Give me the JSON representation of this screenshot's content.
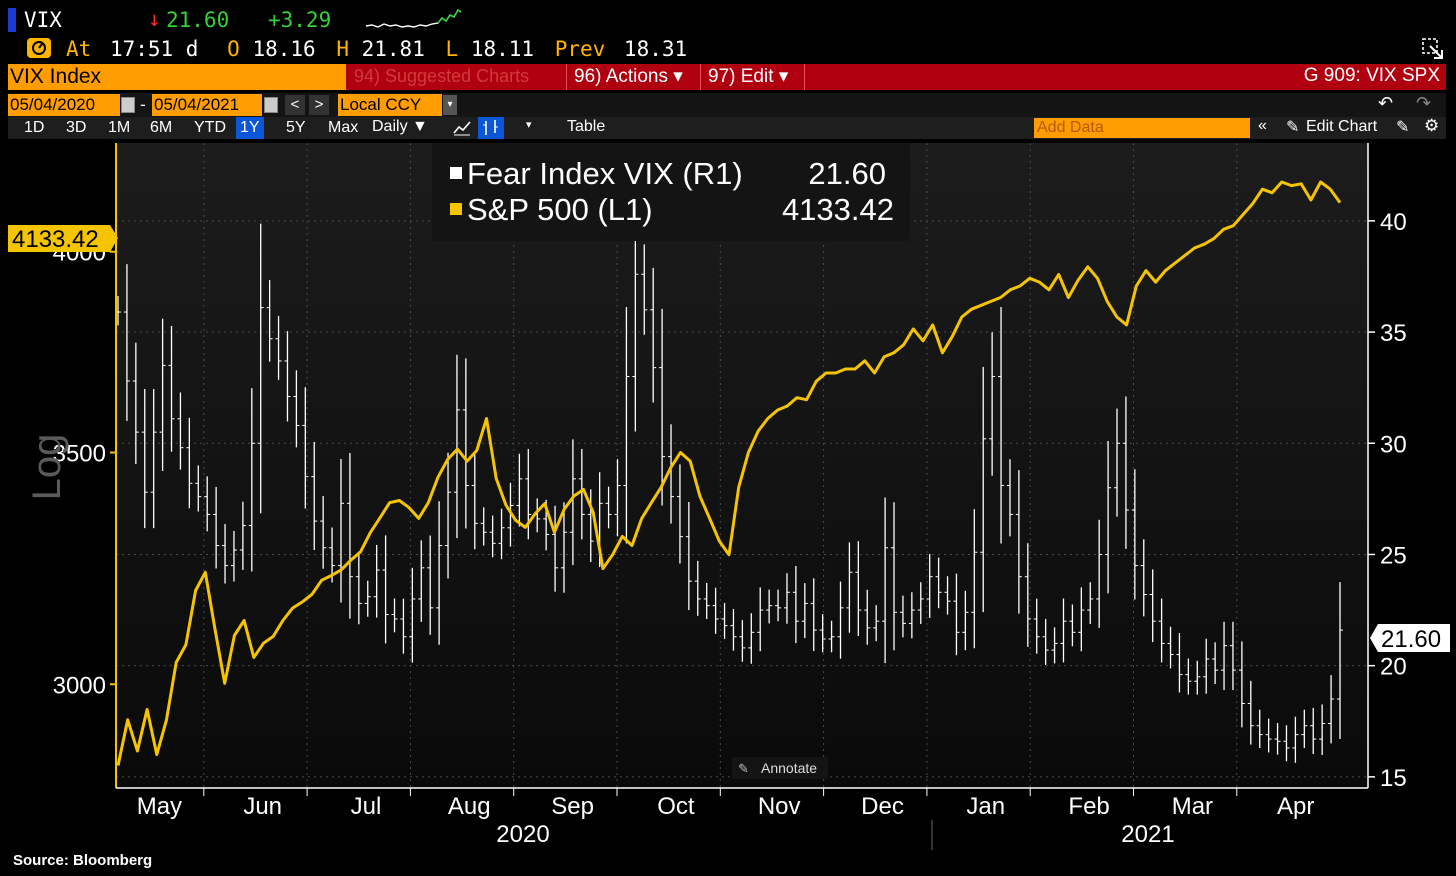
{
  "header": {
    "ticker": "VIX",
    "last": "21.60",
    "arrow": "↓",
    "change": "+3.29",
    "at_label": "At",
    "time": "17:51 d",
    "open_label": "O",
    "open": "18.16",
    "high_label": "H",
    "high": "21.81",
    "low_label": "L",
    "low": "18.11",
    "prev_label": "Prev",
    "prev": "18.31"
  },
  "menubar": {
    "security": "VIX Index",
    "suggested": "94) Suggested Charts",
    "actions": "96) Actions ▾",
    "edit": "97) Edit ▾",
    "chart_id": "G 909: VIX SPX"
  },
  "daterow": {
    "start": "05/04/2020",
    "dash": "-",
    "end": "05/04/2021",
    "currency": "Local CCY"
  },
  "toolbar": {
    "periods": [
      "1D",
      "3D",
      "1M",
      "6M",
      "YTD",
      "1Y",
      "5Y",
      "Max"
    ],
    "selected_period": "1Y",
    "frequency": "Daily ▼",
    "table": "Table",
    "add_data_placeholder": "Add Data",
    "edit_chart": "Edit Chart"
  },
  "annotate": "Annotate",
  "source": "Source: Bloomberg",
  "colors": {
    "spx": "#f5c400",
    "vix": "#ffffff",
    "accent_orange": "#ff9c00",
    "menu_red": "#b00010"
  },
  "chart_data": {
    "type": "line",
    "legend": [
      {
        "label": "Fear Index VIX (R1)",
        "value": "21.60",
        "color": "#ffffff"
      },
      {
        "label": "S&P 500 (L1)",
        "value": "4133.42",
        "color": "#f5c400"
      }
    ],
    "left_axis": {
      "title": "Log",
      "scale": "log",
      "ticks": [
        3000,
        3500,
        4000
      ],
      "range": [
        2800,
        4300
      ],
      "last_label": "4133.42"
    },
    "right_axis": {
      "ticks": [
        15,
        20,
        25,
        30,
        35,
        40
      ],
      "range": [
        14.5,
        43.5
      ],
      "last_label": "21.60"
    },
    "x_months": [
      "May",
      "Jun",
      "Jul",
      "Aug",
      "Sep",
      "Oct",
      "Nov",
      "Dec",
      "Jan",
      "Feb",
      "Mar",
      "Apr"
    ],
    "x_years": [
      "2020",
      "2021"
    ],
    "series": [
      {
        "name": "S&P 500 (L1)",
        "axis": "left",
        "color": "#f5c400",
        "x_start": "2020-05-04",
        "x_end": "2021-05-04",
        "values": [
          2842,
          2930,
          2870,
          2950,
          2863,
          2930,
          3044,
          3080,
          3193,
          3232,
          3112,
          3002,
          3099,
          3130,
          3054,
          3083,
          3097,
          3130,
          3156,
          3169,
          3185,
          3215,
          3225,
          3237,
          3258,
          3276,
          3318,
          3351,
          3385,
          3390,
          3374,
          3350,
          3385,
          3443,
          3484,
          3508,
          3480,
          3505,
          3580,
          3440,
          3380,
          3346,
          3330,
          3360,
          3383,
          3319,
          3370,
          3400,
          3415,
          3363,
          3240,
          3270,
          3310,
          3290,
          3350,
          3385,
          3420,
          3465,
          3500,
          3480,
          3400,
          3350,
          3300,
          3270,
          3420,
          3500,
          3550,
          3580,
          3600,
          3610,
          3630,
          3625,
          3670,
          3690,
          3690,
          3700,
          3700,
          3720,
          3690,
          3730,
          3740,
          3760,
          3800,
          3770,
          3810,
          3740,
          3780,
          3830,
          3850,
          3860,
          3870,
          3880,
          3900,
          3910,
          3930,
          3920,
          3900,
          3940,
          3880,
          3925,
          3960,
          3930,
          3870,
          3830,
          3810,
          3910,
          3950,
          3920,
          3950,
          3970,
          3990,
          4010,
          4020,
          4035,
          4060,
          4070,
          4100,
          4130,
          4170,
          4160,
          4190,
          4180,
          4185,
          4140,
          4190,
          4170,
          4133
        ]
      },
      {
        "name": "Fear Index VIX (R1)",
        "axis": "right",
        "color": "#ffffff",
        "x_start": "2020-05-04",
        "x_end": "2021-05-04",
        "values": [
          35.9,
          32.8,
          30.5,
          27.8,
          30.5,
          33.5,
          31.1,
          29.8,
          28.2,
          27.6,
          26.8,
          25.4,
          24.5,
          25.2,
          26.3,
          30.0,
          36.1,
          34.7,
          33.7,
          32.1,
          30.8,
          28.5,
          26.5,
          25.3,
          24.5,
          27.3,
          24.0,
          22.8,
          23.1,
          24.3,
          22.3,
          22.1,
          21.3,
          23.0,
          24.4,
          22.6,
          25.4,
          27.8,
          31.5,
          28.1,
          26.4,
          26.0,
          25.5,
          26.2,
          27.2,
          28.4,
          26.8,
          26.6,
          25.9,
          24.4,
          26.0,
          28.4,
          26.8,
          25.6,
          27.3,
          26.8,
          28.1,
          33.0,
          37.6,
          36.0,
          33.4,
          29.4,
          27.6,
          25.8,
          23.8,
          23.0,
          22.7,
          22.1,
          21.8,
          21.3,
          20.8,
          21.5,
          22.5,
          22.7,
          22.6,
          23.3,
          22.0,
          22.8,
          21.6,
          21.2,
          21.3,
          22.6,
          24.2,
          22.5,
          21.7,
          22.0,
          25.3,
          22.4,
          21.9,
          22.5,
          23.0,
          24.0,
          23.3,
          22.9,
          21.5,
          22.4,
          25.1,
          30.2,
          33.0,
          28.1,
          26.8,
          24.0,
          22.1,
          21.3,
          20.7,
          21.0,
          22.0,
          21.5,
          22.5,
          23.0,
          25.0,
          28.0,
          30.0,
          27.0,
          24.5,
          23.2,
          22.0,
          21.0,
          20.5,
          19.6,
          19.3,
          19.5,
          20.3,
          19.8,
          20.9,
          19.8,
          18.3,
          17.3,
          16.9,
          16.7,
          16.6,
          16.3,
          16.9,
          17.3,
          16.7,
          17.4,
          18.5,
          21.6
        ]
      }
    ]
  }
}
